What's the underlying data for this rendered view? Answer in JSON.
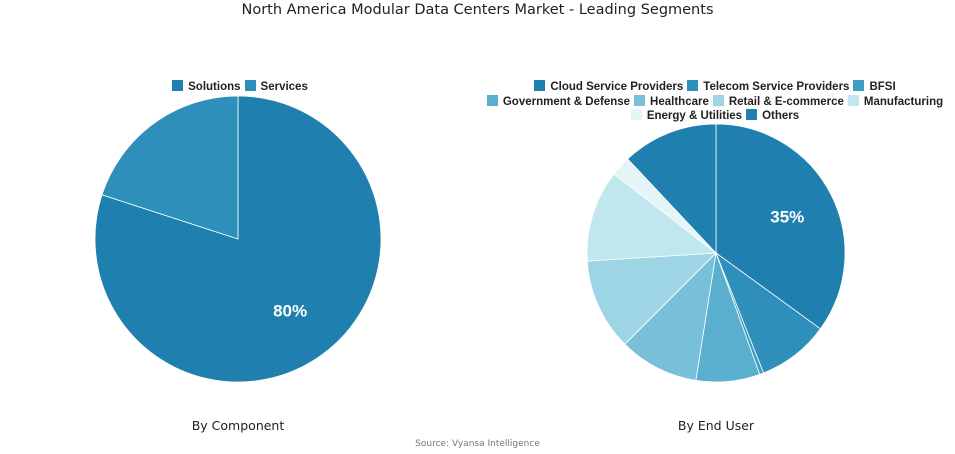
{
  "title": "North America Modular Data Centers Market - Leading Segments",
  "source": "Source: Vyansa Intelligence",
  "chart_data": [
    {
      "type": "pie",
      "subtitle": "By Component",
      "categories": [
        "Solutions",
        "Services"
      ],
      "values": [
        80,
        20
      ],
      "colors": [
        "#1f7fae",
        "#2e8fba"
      ],
      "data_labels": [
        "80%",
        ""
      ],
      "legend": "top"
    },
    {
      "type": "pie",
      "subtitle": "By End User",
      "categories": [
        "Cloud Service Providers",
        "Telecom Service Providers",
        "BFSI",
        "Government & Defense",
        "Healthcare",
        "Retail & E-commerce",
        "Manufacturing",
        "Energy & Utilities",
        "Others"
      ],
      "values": [
        35,
        9,
        0.5,
        8,
        10,
        11.5,
        11.5,
        2.5,
        12
      ],
      "colors": [
        "#1f7fae",
        "#2e8fba",
        "#3f9cc4",
        "#5aafcf",
        "#78c0da",
        "#9dd5e4",
        "#c1e7ee",
        "#e4f5f8",
        "#1f7fae"
      ],
      "data_labels": [
        "35%",
        "",
        "",
        "",
        "",
        "",
        "",
        "",
        ""
      ],
      "legend": "top"
    }
  ]
}
